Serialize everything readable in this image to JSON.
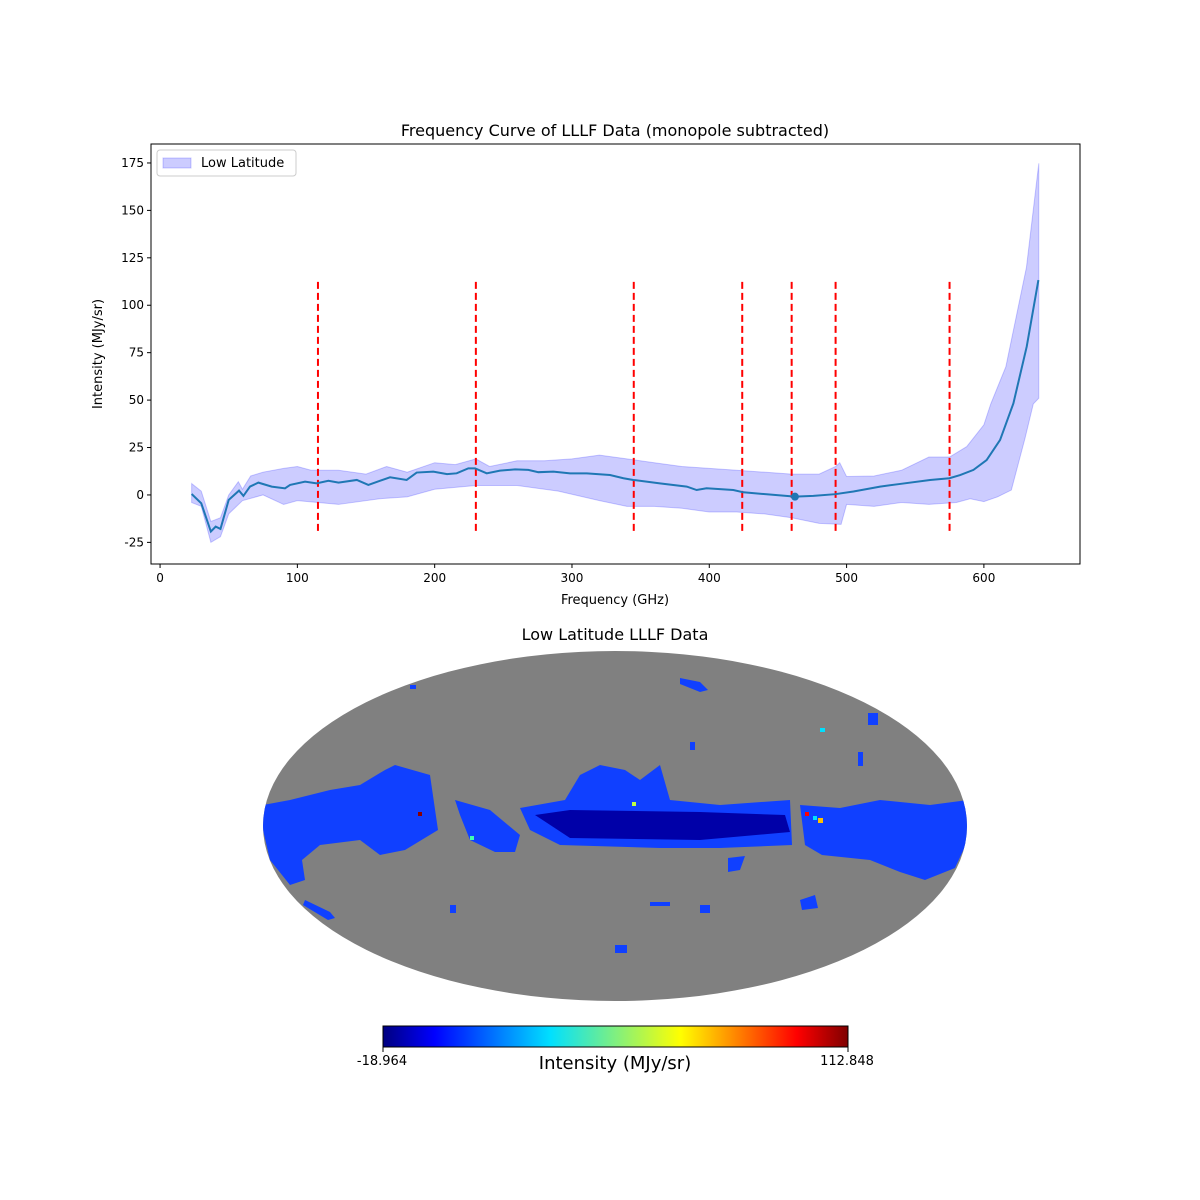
{
  "chart_data": [
    {
      "type": "line",
      "title": "Frequency Curve of LLLF Data (monopole subtracted)",
      "xlabel": "Frequency (GHz)",
      "ylabel": "Intensity (MJy/sr)",
      "xlim": [
        -6.6,
        670
      ],
      "ylim": [
        -36.4,
        185
      ],
      "xticks": [
        0,
        100,
        200,
        300,
        400,
        500,
        600
      ],
      "yticks": [
        -25,
        0,
        25,
        50,
        75,
        100,
        125,
        150,
        175
      ],
      "grid": false,
      "legend": {
        "placement": "top-left",
        "entries": [
          "Low Latitude"
        ]
      },
      "colors": {
        "line": "#1f77b4",
        "band": "#0000ff",
        "vlines": "#ff0000"
      },
      "mean": {
        "x": [
          23,
          30,
          37,
          40.5,
          44,
          50,
          57.5,
          60.7,
          65.5,
          71.6,
          81.3,
          91,
          94.7,
          105.6,
          114,
          122.6,
          130,
          143.3,
          151.7,
          167.5,
          179.6,
          186.9,
          199,
          209,
          216,
          224.5,
          229.4,
          237.9,
          247.6,
          258.6,
          268.2,
          275.5,
          286.5,
          298.6,
          310.8,
          327.7,
          337.5,
          344.7,
          364,
          383.6,
          390.8,
          398,
          417.5,
          424.8,
          441.8,
          462.4,
          475.8,
          491.6,
          505,
          524.4,
          539,
          560.8,
          574.9,
          582.7,
          592.4,
          602,
          611.8,
          621.5,
          631.2,
          639.7
        ],
        "y": [
          0.5,
          -4.4,
          -19.3,
          -16.7,
          -17.9,
          -2.6,
          2.3,
          -0.5,
          4.4,
          6.5,
          4.4,
          3.5,
          5.3,
          7,
          6.1,
          7.5,
          6.5,
          7.9,
          5.3,
          9.3,
          7.9,
          11.8,
          12.3,
          11,
          11.4,
          14,
          14,
          11.4,
          12.8,
          13.5,
          13.2,
          12,
          12.3,
          11.4,
          11.4,
          10.5,
          8.8,
          7.9,
          6.1,
          4.4,
          2.6,
          3.5,
          2.6,
          1.4,
          0.35,
          -0.9,
          -0.5,
          0.4,
          1.8,
          4.4,
          5.8,
          7.9,
          8.8,
          10.5,
          13.2,
          18.4,
          29,
          48.3,
          78.2,
          113.3
        ]
      },
      "band_upper": {
        "x": [
          23,
          30,
          37,
          44,
          50,
          57,
          60,
          66,
          75,
          90,
          100,
          110,
          130,
          150,
          165,
          180,
          200,
          215,
          230,
          240,
          260,
          280,
          300,
          320,
          340,
          360,
          380,
          400,
          420,
          440,
          460,
          480,
          492,
          495,
          500,
          520,
          540,
          560,
          575,
          587.5,
          600,
          605,
          616,
          631,
          640
        ],
        "y": [
          6,
          2,
          -14,
          -12,
          0,
          7,
          3,
          10,
          12,
          14,
          15,
          13,
          13,
          11,
          15,
          12,
          17,
          16,
          19,
          15,
          18,
          18,
          19,
          21,
          19,
          17,
          15,
          14,
          13,
          12,
          11,
          11,
          15,
          17,
          9.7,
          10,
          13,
          20,
          20,
          25.5,
          37,
          48,
          67.6,
          120,
          174.8
        ]
      },
      "band_lower": {
        "x": [
          23,
          30,
          37,
          44,
          50,
          60,
          75,
          90,
          100,
          130,
          160,
          180,
          200,
          230,
          260,
          290,
          320,
          340,
          360,
          380,
          400,
          420,
          440,
          460,
          480,
          496,
          500,
          520,
          540,
          560,
          580,
          590,
          600,
          610,
          620,
          630,
          636,
          640
        ],
        "y": [
          -4,
          -6,
          -25,
          -22,
          -10,
          -3,
          0,
          -5,
          -3,
          -5,
          -2,
          -1,
          3,
          5,
          5,
          2,
          -3,
          -6,
          -6,
          -7,
          -9,
          -9,
          -10,
          -12,
          -15,
          -15.5,
          -5,
          -6,
          -4,
          -5,
          -4,
          -2,
          -3.5,
          -1,
          2.6,
          30,
          48,
          51
        ]
      },
      "vlines": {
        "x": [
          115,
          230,
          345,
          424,
          460,
          492,
          575
        ],
        "ymin": -18.964,
        "ymax": 112.848
      },
      "marker": {
        "x": 462.4,
        "y": -0.9
      }
    },
    {
      "type": "heatmap",
      "title": "Low Latitude LLLF Data",
      "projection": "mollweide",
      "colormap": "jet",
      "colorbar": {
        "label": "Intensity (MJy/sr)",
        "min_label": "-18.964",
        "max_label": "112.848",
        "min": -18.964,
        "max": 112.848
      },
      "colors": {
        "masked": "#808080"
      }
    }
  ]
}
